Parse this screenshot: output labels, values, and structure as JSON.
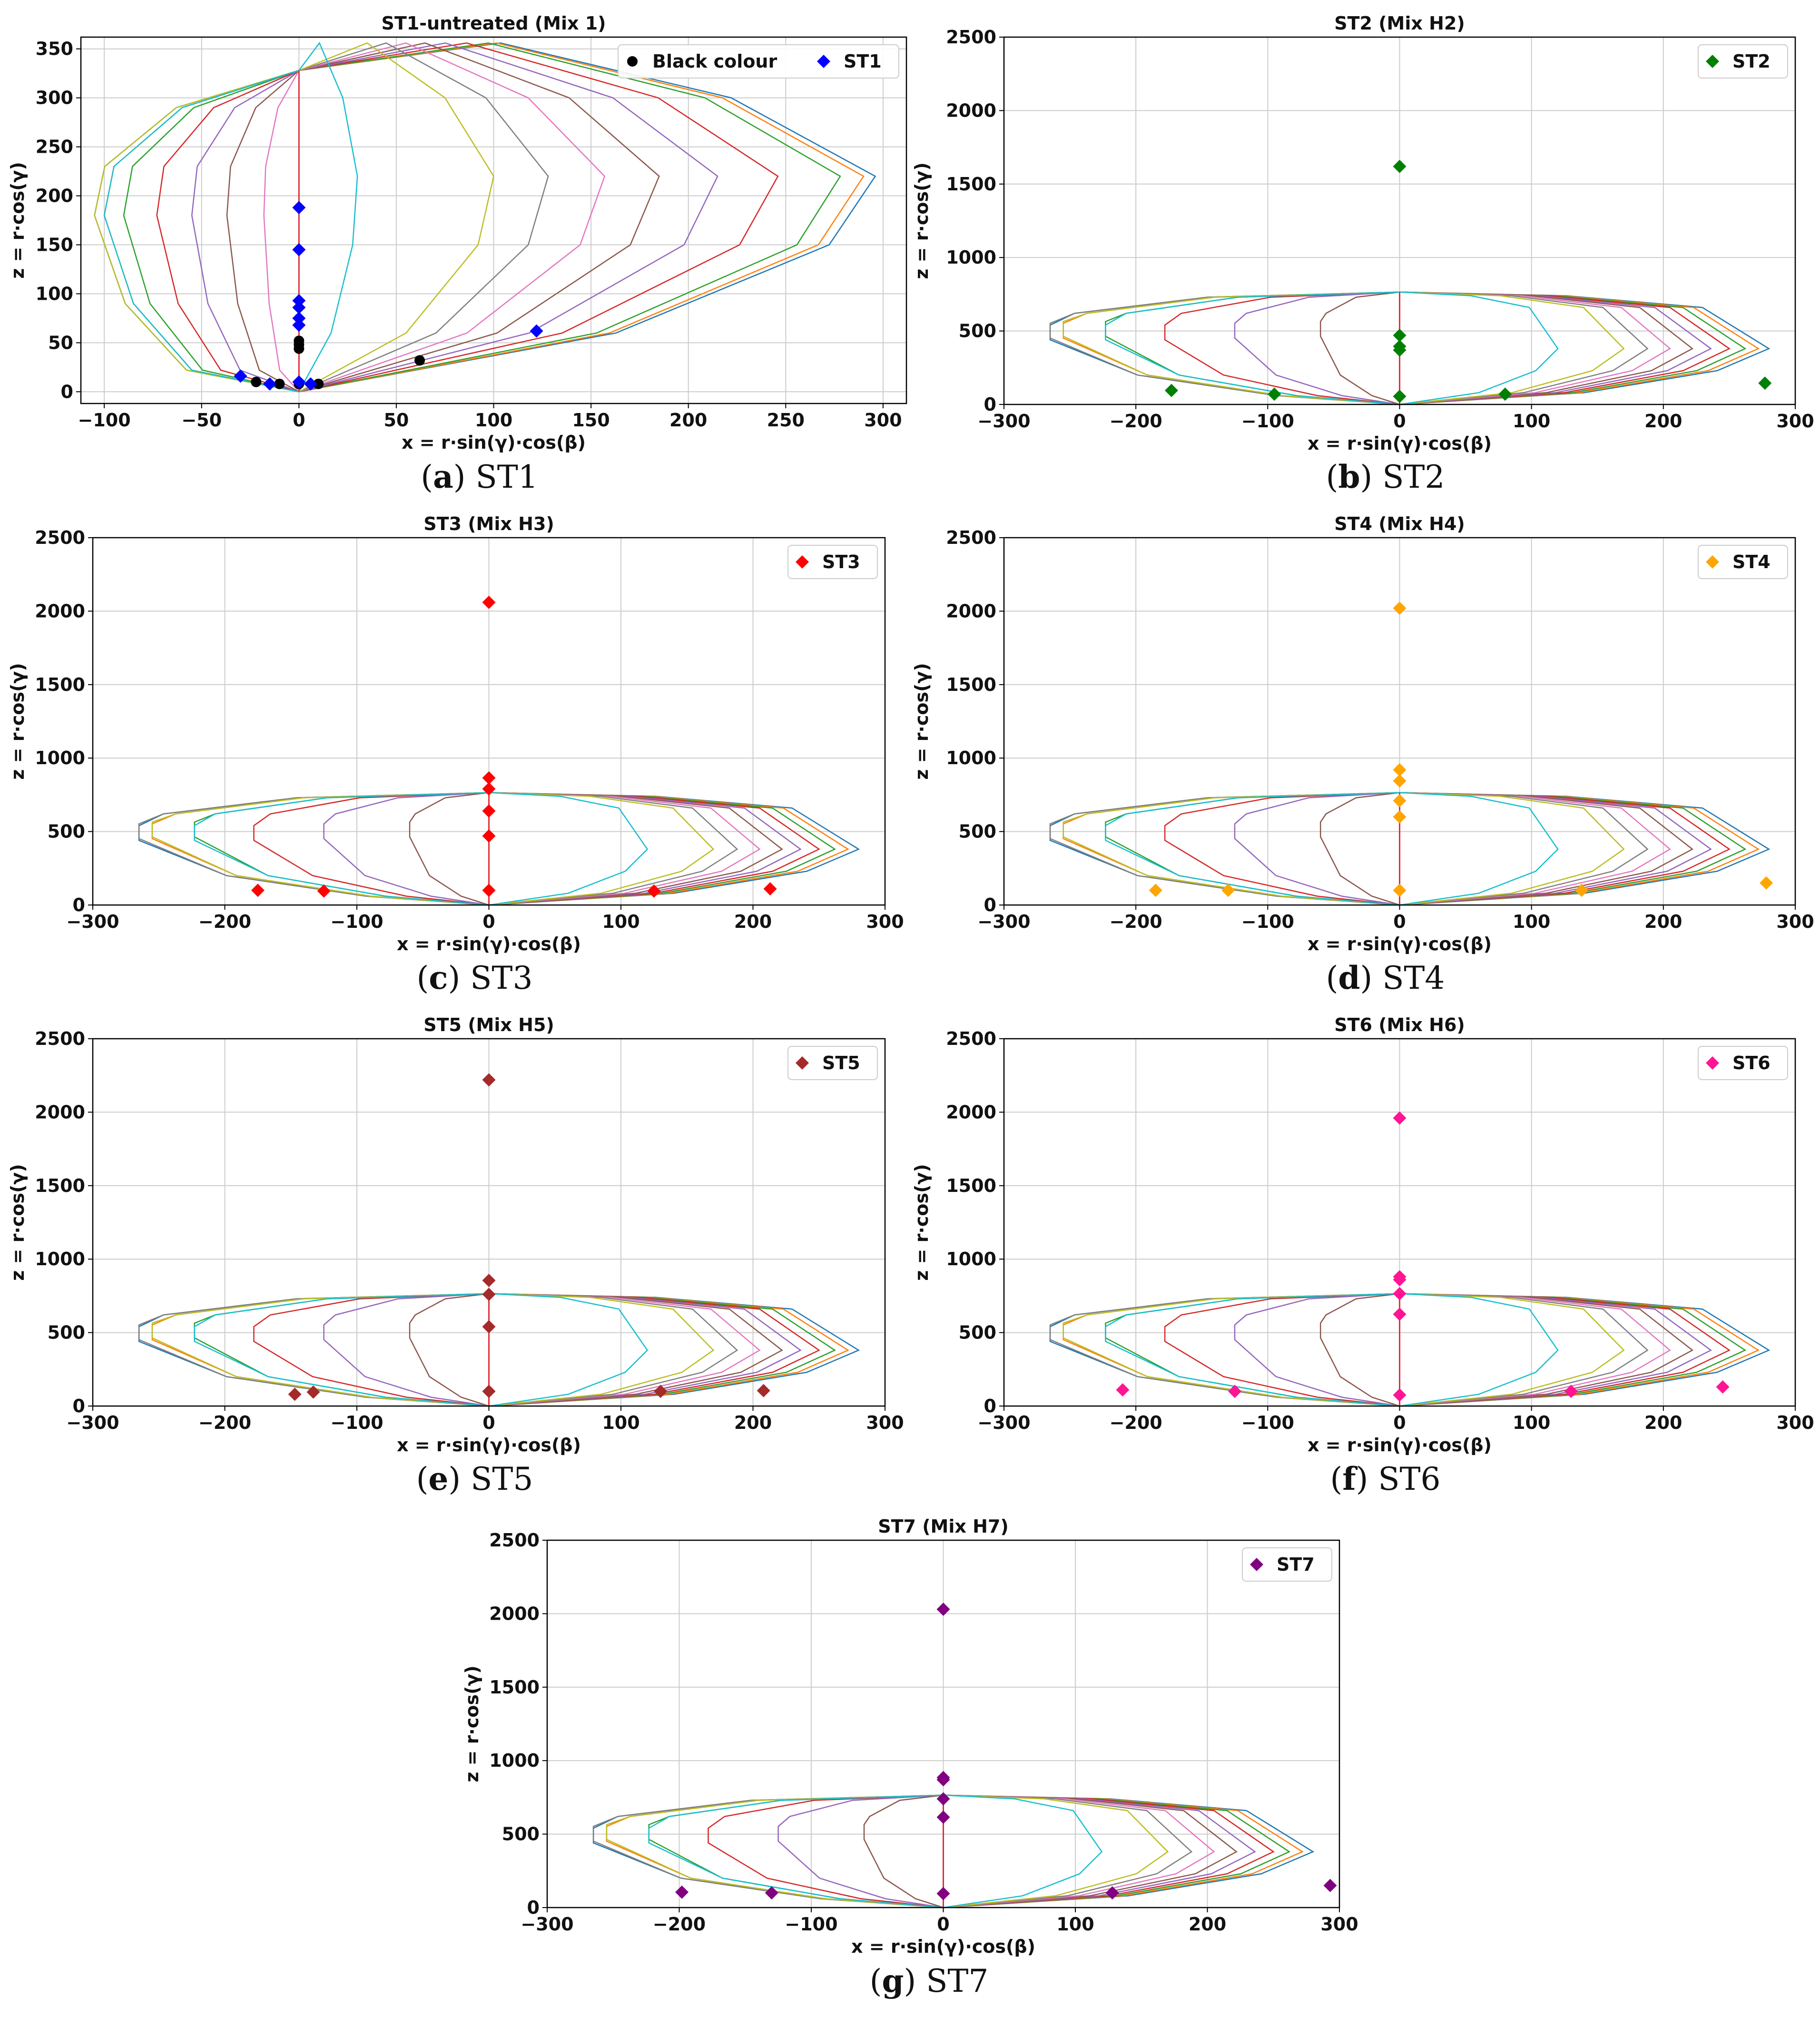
{
  "chart_data": [
    {
      "type": "scatter",
      "title": "ST1-untreated (Mix 1)",
      "xlabel": "x = r·sin(γ)·cos(β)",
      "ylabel": "z = r·cos(γ)",
      "xlim": [
        -112,
        312
      ],
      "ylim": [
        -12,
        362
      ],
      "xticks": [
        "−100",
        "−50",
        "0",
        "50",
        "100",
        "150",
        "200",
        "250",
        "300"
      ],
      "xtick_values": [
        -100,
        -50,
        0,
        50,
        100,
        150,
        200,
        250,
        300
      ],
      "yticks": [
        "0",
        "50",
        "100",
        "150",
        "200",
        "250",
        "300",
        "350"
      ],
      "ytick_values": [
        0,
        50,
        100,
        150,
        200,
        250,
        300,
        350
      ],
      "grid": true,
      "legend": [
        "Black colour",
        "ST1"
      ],
      "legend_position": "top-right",
      "envelope": "st1",
      "series": [
        {
          "name": "Black colour",
          "color": "#000000",
          "marker": "circle",
          "points": [
            [
              -22,
              10
            ],
            [
              -10,
              8
            ],
            [
              0,
              44
            ],
            [
              0,
              48
            ],
            [
              0,
              52
            ],
            [
              0,
              8
            ],
            [
              10,
              8
            ],
            [
              62,
              32
            ]
          ]
        },
        {
          "name": "ST1",
          "color": "#0000ff",
          "marker": "diamond",
          "points": [
            [
              0,
              188
            ],
            [
              0,
              145
            ],
            [
              0,
              93
            ],
            [
              0,
              86
            ],
            [
              0,
              75
            ],
            [
              0,
              68
            ],
            [
              0,
              10
            ],
            [
              -30,
              16
            ],
            [
              -15,
              8
            ],
            [
              6,
              8
            ],
            [
              122,
              62
            ]
          ]
        }
      ],
      "caption_label": "a",
      "caption_text": "ST1"
    },
    {
      "type": "scatter",
      "title": "ST2 (Mix H2)",
      "xlabel": "x = r·sin(γ)·cos(β)",
      "ylabel": "z = r·cos(γ)",
      "xlim": [
        -300,
        300
      ],
      "ylim": [
        0,
        2500
      ],
      "xticks": [
        "−300",
        "−200",
        "−100",
        "0",
        "100",
        "200",
        "300"
      ],
      "xtick_values": [
        -300,
        -200,
        -100,
        0,
        100,
        200,
        300
      ],
      "yticks": [
        "0",
        "500",
        "1000",
        "1500",
        "2000",
        "2500"
      ],
      "ytick_values": [
        0,
        500,
        1000,
        1500,
        2000,
        2500
      ],
      "grid": true,
      "legend": [
        "ST2"
      ],
      "legend_position": "top-right",
      "envelope": "st27",
      "series": [
        {
          "name": "ST2",
          "color": "#008000",
          "marker": "diamond",
          "points": [
            [
              0,
              1620
            ],
            [
              0,
              470
            ],
            [
              0,
              395
            ],
            [
              0,
              370
            ],
            [
              0,
              55
            ],
            [
              -173,
              95
            ],
            [
              -95,
              70
            ],
            [
              80,
              70
            ],
            [
              277,
              145
            ]
          ]
        }
      ],
      "caption_label": "b",
      "caption_text": "ST2"
    },
    {
      "type": "scatter",
      "title": "ST3 (Mix H3)",
      "xlabel": "x = r·sin(γ)·cos(β)",
      "ylabel": "z = r·cos(γ)",
      "xlim": [
        -300,
        300
      ],
      "ylim": [
        0,
        2500
      ],
      "xticks": [
        "−300",
        "−200",
        "−100",
        "0",
        "100",
        "200",
        "300"
      ],
      "xtick_values": [
        -300,
        -200,
        -100,
        0,
        100,
        200,
        300
      ],
      "yticks": [
        "0",
        "500",
        "1000",
        "1500",
        "2000",
        "2500"
      ],
      "ytick_values": [
        0,
        500,
        1000,
        1500,
        2000,
        2500
      ],
      "grid": true,
      "legend": [
        "ST3"
      ],
      "legend_position": "top-right",
      "envelope": "st27",
      "series": [
        {
          "name": "ST3",
          "color": "#ff0000",
          "marker": "diamond",
          "points": [
            [
              0,
              2060
            ],
            [
              0,
              865
            ],
            [
              0,
              790
            ],
            [
              0,
              640
            ],
            [
              0,
              470
            ],
            [
              0,
              100
            ],
            [
              -175,
              100
            ],
            [
              -125,
              95
            ],
            [
              125,
              95
            ],
            [
              213,
              110
            ]
          ]
        }
      ],
      "caption_label": "c",
      "caption_text": "ST3"
    },
    {
      "type": "scatter",
      "title": "ST4 (Mix H4)",
      "xlabel": "x = r·sin(γ)·cos(β)",
      "ylabel": "z = r·cos(γ)",
      "xlim": [
        -300,
        300
      ],
      "ylim": [
        0,
        2500
      ],
      "xticks": [
        "−300",
        "−200",
        "−100",
        "0",
        "100",
        "200",
        "300"
      ],
      "xtick_values": [
        -300,
        -200,
        -100,
        0,
        100,
        200,
        300
      ],
      "yticks": [
        "0",
        "500",
        "1000",
        "1500",
        "2000",
        "2500"
      ],
      "ytick_values": [
        0,
        500,
        1000,
        1500,
        2000,
        2500
      ],
      "grid": true,
      "legend": [
        "ST4"
      ],
      "legend_position": "top-right",
      "envelope": "st27",
      "series": [
        {
          "name": "ST4",
          "color": "#ffa500",
          "marker": "diamond",
          "points": [
            [
              0,
              2020
            ],
            [
              0,
              920
            ],
            [
              0,
              845
            ],
            [
              0,
              710
            ],
            [
              0,
              600
            ],
            [
              0,
              100
            ],
            [
              -185,
              100
            ],
            [
              -130,
              100
            ],
            [
              138,
              100
            ],
            [
              278,
              150
            ]
          ]
        }
      ],
      "caption_label": "d",
      "caption_text": "ST4"
    },
    {
      "type": "scatter",
      "title": "ST5 (Mix H5)",
      "xlabel": "x = r·sin(γ)·cos(β)",
      "ylabel": "z = r·cos(γ)",
      "xlim": [
        -300,
        300
      ],
      "ylim": [
        0,
        2500
      ],
      "xticks": [
        "−300",
        "−200",
        "−100",
        "0",
        "100",
        "200",
        "300"
      ],
      "xtick_values": [
        -300,
        -200,
        -100,
        0,
        100,
        200,
        300
      ],
      "yticks": [
        "0",
        "500",
        "1000",
        "1500",
        "2000",
        "2500"
      ],
      "ytick_values": [
        0,
        500,
        1000,
        1500,
        2000,
        2500
      ],
      "grid": true,
      "legend": [
        "ST5"
      ],
      "legend_position": "top-right",
      "envelope": "st27",
      "series": [
        {
          "name": "ST5",
          "color": "#a52a2a",
          "marker": "diamond",
          "points": [
            [
              0,
              2220
            ],
            [
              0,
              855
            ],
            [
              0,
              760
            ],
            [
              0,
              540
            ],
            [
              0,
              100
            ],
            [
              -147,
              80
            ],
            [
              -133,
              95
            ],
            [
              130,
              100
            ],
            [
              208,
              105
            ]
          ]
        }
      ],
      "caption_label": "e",
      "caption_text": "ST5"
    },
    {
      "type": "scatter",
      "title": "ST6 (Mix H6)",
      "xlabel": "x = r·sin(γ)·cos(β)",
      "ylabel": "z = r·cos(γ)",
      "xlim": [
        -300,
        300
      ],
      "ylim": [
        0,
        2500
      ],
      "xticks": [
        "−300",
        "−200",
        "−100",
        "0",
        "100",
        "200",
        "300"
      ],
      "xtick_values": [
        -300,
        -200,
        -100,
        0,
        100,
        200,
        300
      ],
      "yticks": [
        "0",
        "500",
        "1000",
        "1500",
        "2000",
        "2500"
      ],
      "ytick_values": [
        0,
        500,
        1000,
        1500,
        2000,
        2500
      ],
      "grid": true,
      "legend": [
        "ST6"
      ],
      "legend_position": "top-right",
      "envelope": "st27",
      "series": [
        {
          "name": "ST6",
          "color": "#ff1493",
          "marker": "diamond",
          "points": [
            [
              0,
              1960
            ],
            [
              0,
              880
            ],
            [
              0,
              860
            ],
            [
              0,
              765
            ],
            [
              0,
              625
            ],
            [
              0,
              75
            ],
            [
              -210,
              110
            ],
            [
              -125,
              100
            ],
            [
              130,
              100
            ],
            [
              245,
              130
            ]
          ]
        }
      ],
      "caption_label": "f",
      "caption_text": "ST6"
    },
    {
      "type": "scatter",
      "title": "ST7 (Mix H7)",
      "xlabel": "x = r·sin(γ)·cos(β)",
      "ylabel": "z = r·cos(γ)",
      "xlim": [
        -300,
        300
      ],
      "ylim": [
        0,
        2500
      ],
      "xticks": [
        "−300",
        "−200",
        "−100",
        "0",
        "100",
        "200",
        "300"
      ],
      "xtick_values": [
        -300,
        -200,
        -100,
        0,
        100,
        200,
        300
      ],
      "yticks": [
        "0",
        "500",
        "1000",
        "1500",
        "2000",
        "2500"
      ],
      "ytick_values": [
        0,
        500,
        1000,
        1500,
        2000,
        2500
      ],
      "grid": true,
      "legend": [
        "ST7"
      ],
      "legend_position": "top-right",
      "envelope": "st27",
      "series": [
        {
          "name": "ST7",
          "color": "#800080",
          "marker": "diamond",
          "points": [
            [
              0,
              2030
            ],
            [
              0,
              885
            ],
            [
              0,
              870
            ],
            [
              0,
              740
            ],
            [
              0,
              615
            ],
            [
              0,
              95
            ],
            [
              -198,
              105
            ],
            [
              -130,
              100
            ],
            [
              128,
              100
            ],
            [
              293,
              150
            ]
          ]
        }
      ],
      "caption_label": "g",
      "caption_text": "ST7"
    }
  ],
  "envelope_colors": [
    "#1f77b4",
    "#ff7f0e",
    "#2ca02c",
    "#d62728",
    "#9467bd",
    "#8c564b",
    "#e377c2",
    "#7f7f7f",
    "#bcbd22",
    "#17becf"
  ]
}
